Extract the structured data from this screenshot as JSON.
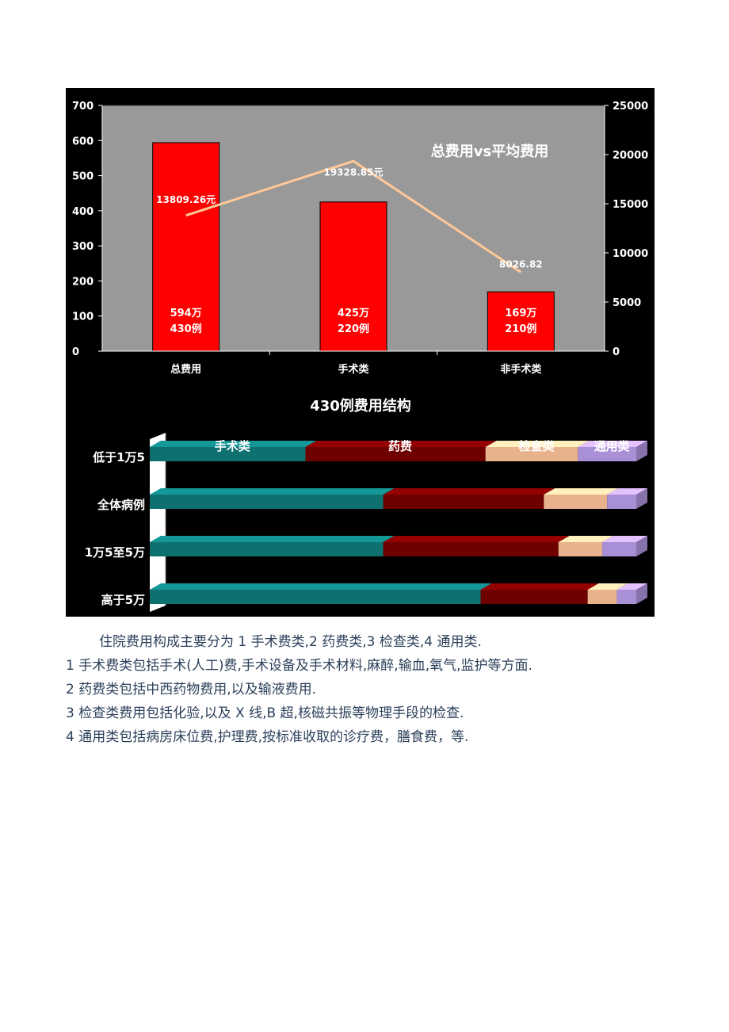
{
  "chart_data": [
    {
      "type": "bar",
      "title": "总费用vs平均费用",
      "categories": [
        "总费用",
        "手术类",
        "非手术类"
      ],
      "series": [
        {
          "values": [
            594,
            425,
            169
          ],
          "data_labels": [
            [
              "594万",
              "430例"
            ],
            [
              "425万",
              "220例"
            ],
            [
              "169万",
              "210例"
            ]
          ],
          "color": "#ff0000",
          "axis": "left"
        },
        {
          "type": "line",
          "values": [
            13809.26,
            19328.85,
            8026.82
          ],
          "data_labels": [
            "13809.26元",
            "19328.85元",
            "8026.82"
          ],
          "color": "#ffc896",
          "axis": "right"
        }
      ],
      "ylim": [
        0,
        700
      ],
      "yticks": [
        "700",
        "600",
        "500",
        "400",
        "300",
        "200",
        "100",
        "0"
      ],
      "y2lim": [
        0,
        25000
      ],
      "y2ticks": [
        "25000",
        "20000",
        "15000",
        "10000",
        "5000",
        "0"
      ],
      "grid": false,
      "plot_background": "#999999",
      "background": "#000000"
    },
    {
      "type": "bar",
      "orientation": "horizontal",
      "stacked": true,
      "percent": true,
      "title": "430例费用结构",
      "categories": [
        "低于1万5",
        "全体病例",
        "1万5至5万",
        "高于5万"
      ],
      "series": [
        {
          "name": "手术类",
          "color": "#0f7070",
          "values": [
            32,
            48,
            48,
            68
          ]
        },
        {
          "name": "药费",
          "color": "#6e0000",
          "values": [
            37,
            33,
            36,
            22
          ]
        },
        {
          "name": "检查类",
          "color": "#e8b28c",
          "values": [
            19,
            13,
            9,
            6
          ]
        },
        {
          "name": "通用类",
          "color": "#a98fd6",
          "values": [
            12,
            6,
            7,
            4
          ]
        }
      ],
      "background": "#000000"
    }
  ],
  "text": {
    "lines": [
      "住院费用构成主要分为 1 手术费类,2 药费类,3 检查类,4 通用类.",
      "1 手术费类包括手术(人工)费,手术设备及手术材料,麻醉,输血,氧气,监护等方面.",
      "2 药费类包括中西药物费用,以及输液费用.",
      "3 检查类费用包括化验,以及 X 线,B 超,核磁共振等物理手段的检查.",
      "4 通用类包括病房床位费,护理费,按标准收取的诊疗费，膳食费，等."
    ]
  }
}
